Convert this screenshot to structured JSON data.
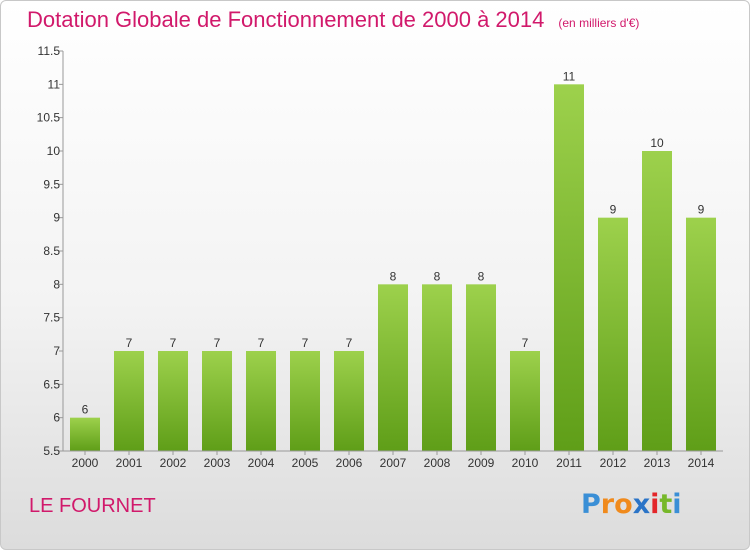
{
  "header": {
    "title": "Dotation Globale de Fonctionnement de 2000 à 2014",
    "unit": "(en milliers d'€)"
  },
  "footer": {
    "place": "LE FOURNET",
    "logo": {
      "letters": [
        "P",
        "r",
        "o",
        "x",
        "i",
        "t",
        "i"
      ],
      "colors": [
        "#3a8fd6",
        "#f08a1c",
        "#f08a1c",
        "#2b74c7",
        "#e3262a",
        "#77b82a",
        "#3a8fd6"
      ]
    }
  },
  "chart_data": {
    "type": "bar",
    "title": "Dotation Globale de Fonctionnement de 2000 à 2014",
    "subtitle": "(en milliers d'€)",
    "xlabel": "",
    "ylabel": "",
    "categories": [
      "2000",
      "2001",
      "2002",
      "2003",
      "2004",
      "2005",
      "2006",
      "2007",
      "2008",
      "2009",
      "2010",
      "2011",
      "2012",
      "2013",
      "2014"
    ],
    "values": [
      6,
      7,
      7,
      7,
      7,
      7,
      7,
      8,
      8,
      8,
      7,
      11,
      9,
      10,
      9
    ],
    "data_labels": [
      "6",
      "7",
      "7",
      "7",
      "7",
      "7",
      "7",
      "8",
      "8",
      "8",
      "7",
      "11",
      "9",
      "10",
      "9"
    ],
    "ylim": [
      5.5,
      11.5
    ],
    "yticks": [
      5.5,
      6,
      6.5,
      7,
      7.5,
      8,
      8.5,
      9,
      9.5,
      10,
      10.5,
      11,
      11.5
    ],
    "ytick_labels": [
      "5.5",
      "6",
      "6.5",
      "7",
      "7.5",
      "8",
      "8.5",
      "9",
      "9.5",
      "10",
      "10.5",
      "11",
      "11.5"
    ],
    "grid": false,
    "bar_color_top": "#9dd14c",
    "bar_color_bottom": "#5f9e18"
  }
}
